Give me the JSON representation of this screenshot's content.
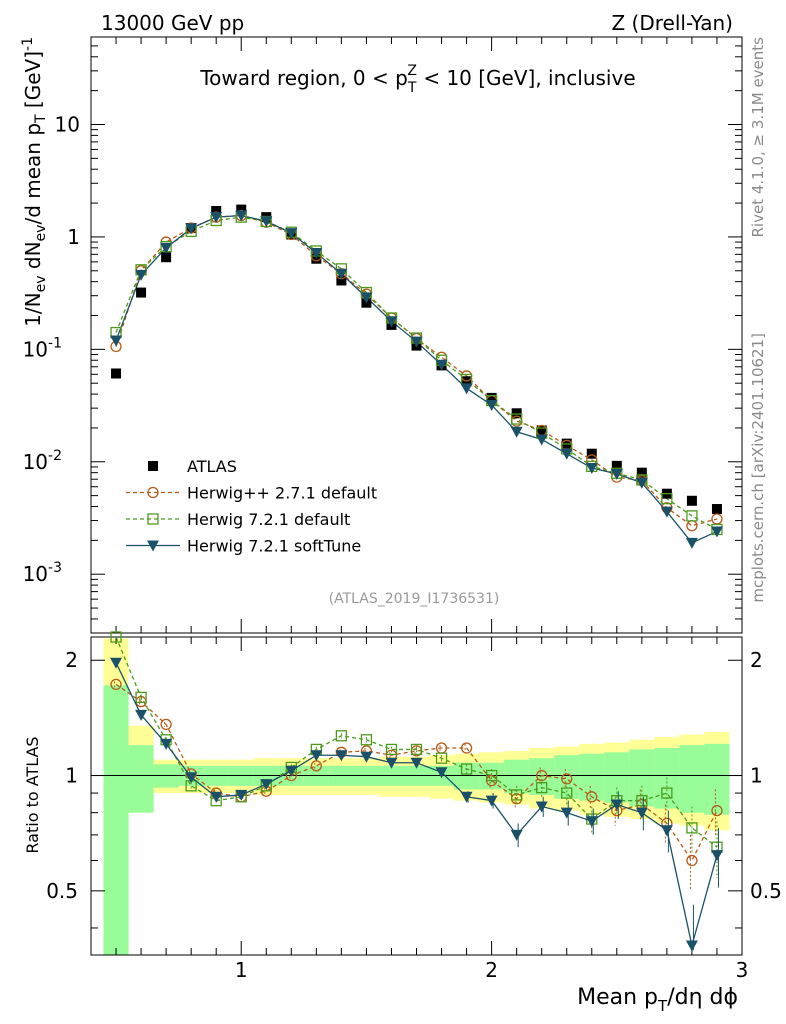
{
  "header": {
    "energy_label": "13000 GeV pp",
    "process_label": "Z (Drell-Yan)",
    "analysis_id": "(ATLAS_2019_I1736531)"
  },
  "side_text": {
    "rivet": "Rivet 4.1.0, ≥ 3.1M events",
    "mcplots": "mcplots.cern.ch [arXiv:2401.10621]"
  },
  "chart_data": {
    "type": "line",
    "title": "Toward region, 0 < pTZ < 10 [GeV], inclusive",
    "xlabel": "Mean pT/dη dϕ",
    "ylabel": "1/Nev dNev/d mean pT [GeV]-1",
    "ratio_ylabel": "Ratio to ATLAS",
    "xlim": [
      0.4,
      3.0
    ],
    "ylim": [
      0.0003,
      60
    ],
    "ratio_ylim": [
      0.34,
      2.3
    ],
    "x_ticks": [
      "1",
      "2",
      "3"
    ],
    "y_ticks": [
      "10^-3",
      "10^-2",
      "10^-1",
      "1",
      "10"
    ],
    "ratio_ticks": [
      "0.5",
      "1",
      "2"
    ],
    "x": [
      0.5,
      0.6,
      0.7,
      0.8,
      0.9,
      1.0,
      1.1,
      1.2,
      1.3,
      1.4,
      1.5,
      1.6,
      1.7,
      1.8,
      1.9,
      2.0,
      2.1,
      2.2,
      2.3,
      2.4,
      2.5,
      2.6,
      2.7,
      2.8,
      2.9
    ],
    "series": [
      {
        "name": "ATLAS",
        "color": "#000000",
        "values": [
          0.061,
          0.32,
          0.66,
          1.2,
          1.7,
          1.75,
          1.5,
          1.05,
          0.64,
          0.41,
          0.26,
          0.165,
          0.108,
          0.072,
          0.052,
          0.037,
          0.027,
          0.019,
          0.0145,
          0.0118,
          0.0092,
          0.008,
          0.0052,
          0.0045,
          0.0038
        ]
      },
      {
        "name": "Herwig++ 2.7.1 default",
        "color": "#b85a18",
        "values": [
          0.106,
          0.5,
          0.9,
          1.2,
          1.5,
          1.55,
          1.35,
          1.05,
          0.68,
          0.47,
          0.31,
          0.19,
          0.125,
          0.085,
          0.058,
          0.035,
          0.023,
          0.019,
          0.014,
          0.0104,
          0.0073,
          0.0068,
          0.0039,
          0.0027,
          0.0031
        ]
      },
      {
        "name": "Herwig 7.2.1 default",
        "color": "#4d9a1c",
        "values": [
          0.141,
          0.51,
          0.82,
          1.12,
          1.4,
          1.5,
          1.37,
          1.1,
          0.75,
          0.52,
          0.32,
          0.19,
          0.126,
          0.08,
          0.054,
          0.035,
          0.024,
          0.018,
          0.013,
          0.0091,
          0.0079,
          0.0069,
          0.0047,
          0.0033,
          0.0025
        ]
      },
      {
        "name": "Herwig 7.2.1 softTune",
        "color": "#1b5168",
        "values": [
          0.12,
          0.46,
          0.8,
          1.19,
          1.5,
          1.55,
          1.38,
          1.08,
          0.72,
          0.47,
          0.29,
          0.178,
          0.117,
          0.073,
          0.045,
          0.032,
          0.0185,
          0.0158,
          0.0118,
          0.0088,
          0.0078,
          0.0065,
          0.0036,
          0.0019,
          0.0024
        ]
      }
    ],
    "ratio_series": [
      {
        "name": "Herwig++ 2.7.1 default",
        "values": [
          1.73,
          1.56,
          1.36,
          1.01,
          0.9,
          0.88,
          0.91,
          1.0,
          1.06,
          1.15,
          1.16,
          1.13,
          1.16,
          1.18,
          1.18,
          0.97,
          0.87,
          1.0,
          0.98,
          0.88,
          0.81,
          0.84,
          0.75,
          0.6,
          0.81
        ]
      },
      {
        "name": "Herwig 7.2.1 default",
        "values": [
          2.31,
          1.6,
          1.24,
          0.94,
          0.86,
          0.88,
          0.94,
          1.05,
          1.17,
          1.27,
          1.24,
          1.17,
          1.17,
          1.11,
          1.04,
          1.0,
          0.89,
          0.93,
          0.9,
          0.77,
          0.86,
          0.86,
          0.9,
          0.73,
          0.65
        ]
      },
      {
        "name": "Herwig 7.2.1 softTune",
        "values": [
          1.97,
          1.44,
          1.21,
          0.99,
          0.88,
          0.89,
          0.95,
          1.03,
          1.13,
          1.13,
          1.12,
          1.08,
          1.08,
          1.02,
          0.88,
          0.86,
          0.7,
          0.83,
          0.8,
          0.76,
          0.84,
          0.8,
          0.72,
          0.36,
          0.62
        ]
      }
    ],
    "ratio_errors": [
      0.03,
      0.03,
      0.02,
      0.02,
      0.02,
      0.02,
      0.02,
      0.02,
      0.02,
      0.02,
      0.02,
      0.02,
      0.02,
      0.02,
      0.03,
      0.04,
      0.05,
      0.05,
      0.06,
      0.06,
      0.07,
      0.08,
      0.09,
      0.1,
      0.11
    ],
    "band_inner": {
      "edges": [
        0.45,
        0.55,
        0.65,
        0.75,
        0.85,
        0.95,
        1.05,
        1.15,
        1.25,
        1.35,
        1.45,
        1.55,
        1.65,
        1.75,
        1.85,
        1.95,
        2.05,
        2.15,
        2.25,
        2.35,
        2.45,
        2.55,
        2.65,
        2.75,
        2.85,
        2.95
      ],
      "lo": [
        0.3,
        0.8,
        0.93,
        0.94,
        0.94,
        0.94,
        0.94,
        0.94,
        0.94,
        0.94,
        0.94,
        0.94,
        0.94,
        0.94,
        0.92,
        0.92,
        0.9,
        0.89,
        0.87,
        0.86,
        0.85,
        0.83,
        0.82,
        0.8,
        0.79
      ],
      "hi": [
        1.72,
        1.2,
        1.07,
        1.06,
        1.06,
        1.06,
        1.06,
        1.06,
        1.06,
        1.06,
        1.06,
        1.06,
        1.06,
        1.06,
        1.08,
        1.08,
        1.1,
        1.11,
        1.13,
        1.14,
        1.15,
        1.17,
        1.18,
        1.2,
        1.21
      ]
    },
    "band_outer": {
      "lo": [
        0.3,
        0.8,
        0.9,
        0.9,
        0.9,
        0.9,
        0.89,
        0.89,
        0.89,
        0.89,
        0.89,
        0.88,
        0.88,
        0.87,
        0.86,
        0.85,
        0.84,
        0.82,
        0.81,
        0.79,
        0.78,
        0.77,
        0.75,
        0.74,
        0.72
      ],
      "hi": [
        2.28,
        1.35,
        1.1,
        1.1,
        1.1,
        1.1,
        1.11,
        1.11,
        1.11,
        1.11,
        1.11,
        1.12,
        1.12,
        1.13,
        1.14,
        1.15,
        1.16,
        1.18,
        1.19,
        1.21,
        1.22,
        1.24,
        1.26,
        1.28,
        1.3
      ]
    }
  }
}
